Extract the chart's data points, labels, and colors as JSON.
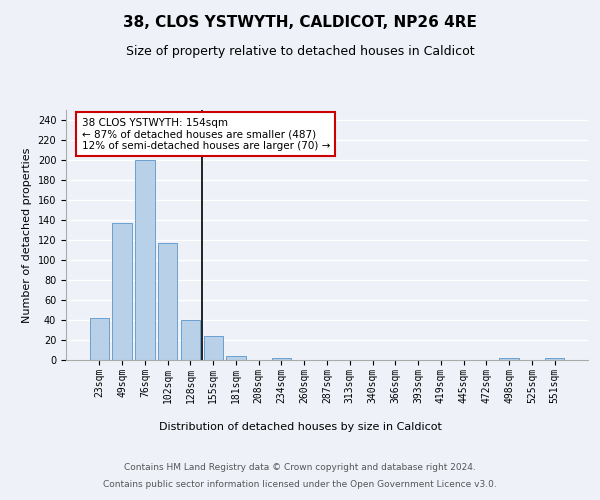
{
  "title_line1": "38, CLOS YSTWYTH, CALDICOT, NP26 4RE",
  "title_line2": "Size of property relative to detached houses in Caldicot",
  "xlabel": "Distribution of detached houses by size in Caldicot",
  "ylabel": "Number of detached properties",
  "categories": [
    "23sqm",
    "49sqm",
    "76sqm",
    "102sqm",
    "128sqm",
    "155sqm",
    "181sqm",
    "208sqm",
    "234sqm",
    "260sqm",
    "287sqm",
    "313sqm",
    "340sqm",
    "366sqm",
    "393sqm",
    "419sqm",
    "445sqm",
    "472sqm",
    "498sqm",
    "525sqm",
    "551sqm"
  ],
  "values": [
    42,
    137,
    200,
    117,
    40,
    24,
    4,
    0,
    2,
    0,
    0,
    0,
    0,
    0,
    0,
    0,
    0,
    0,
    2,
    0,
    2
  ],
  "bar_color": "#b8d0e8",
  "bar_edge_color": "#6a9fd0",
  "highlight_bar_index": 4,
  "annotation_text": "38 CLOS YSTWYTH: 154sqm\n← 87% of detached houses are smaller (487)\n12% of semi-detached houses are larger (70) →",
  "annotation_box_color": "#ffffff",
  "annotation_box_edge_color": "#cc0000",
  "vline_x": 4.5,
  "ylim": [
    0,
    250
  ],
  "yticks": [
    0,
    20,
    40,
    60,
    80,
    100,
    120,
    140,
    160,
    180,
    200,
    220,
    240
  ],
  "background_color": "#eef2f8",
  "footer_line1": "Contains HM Land Registry data © Crown copyright and database right 2024.",
  "footer_line2": "Contains public sector information licensed under the Open Government Licence v3.0.",
  "title_fontsize": 11,
  "subtitle_fontsize": 9,
  "xlabel_fontsize": 8,
  "ylabel_fontsize": 8,
  "tick_fontsize": 7,
  "annotation_fontsize": 7.5,
  "footer_fontsize": 6.5
}
